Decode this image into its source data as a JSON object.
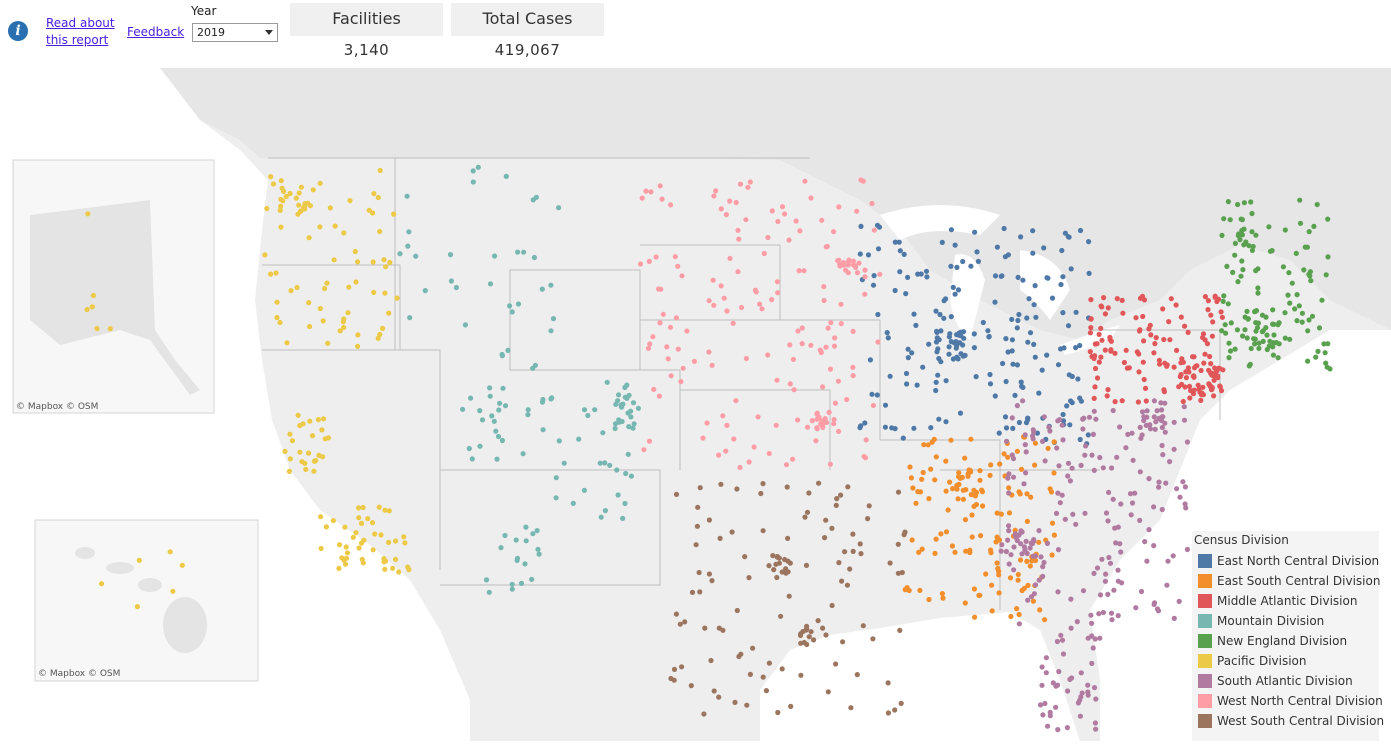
{
  "header": {
    "info_icon": "info-icon",
    "read_about_line1": "Read about",
    "read_about_line2": "this report",
    "feedback": "Feedback",
    "year_label": "Year",
    "year_value": "2019"
  },
  "kpis": [
    {
      "title": "Facilities",
      "value": "3,140"
    },
    {
      "title": "Total Cases",
      "value": "419,067"
    }
  ],
  "map": {
    "credit_alaska": "© Mapbox © OSM",
    "credit_hawaii": "© Mapbox © OSM"
  },
  "legend": {
    "title": "Census Division",
    "items": [
      {
        "label": "East North Central Division",
        "color": "#4e79a7"
      },
      {
        "label": "East South Central Division",
        "color": "#f28e2b"
      },
      {
        "label": "Middle Atlantic Division",
        "color": "#e15759"
      },
      {
        "label": "Mountain Division",
        "color": "#76b7b2"
      },
      {
        "label": "New England Division",
        "color": "#59a14f"
      },
      {
        "label": "Pacific Division",
        "color": "#edc948"
      },
      {
        "label": "South Atlantic Division",
        "color": "#b07aa1"
      },
      {
        "label": "West North Central Division",
        "color": "#ff9da7"
      },
      {
        "label": "West South Central Division",
        "color": "#9c755f"
      }
    ]
  }
}
